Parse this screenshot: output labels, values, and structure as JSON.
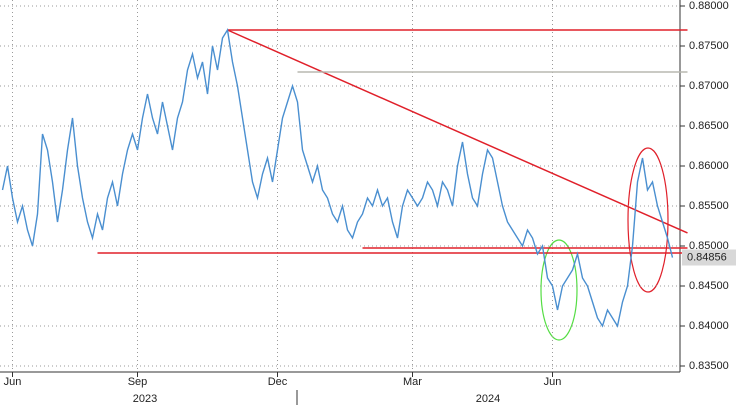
{
  "chart_data": {
    "type": "line",
    "categories": [
      null,
      null,
      "Jun",
      null,
      null,
      null,
      null,
      null,
      null,
      null,
      null,
      null,
      null,
      null,
      null,
      null,
      null,
      null,
      null,
      null,
      null,
      null,
      null,
      null,
      null,
      null,
      null,
      "Sep",
      null,
      null,
      null,
      null,
      null,
      null,
      null,
      null,
      null,
      null,
      null,
      null,
      null,
      null,
      null,
      null,
      null,
      null,
      null,
      null,
      null,
      null,
      null,
      null,
      null,
      null,
      null,
      "Dec",
      null,
      null,
      null,
      null,
      null,
      null,
      null,
      null,
      null,
      null,
      null,
      null,
      null,
      null,
      null,
      null,
      null,
      null,
      null,
      null,
      null,
      null,
      null,
      null,
      null,
      null,
      "Mar",
      null,
      null,
      null,
      null,
      null,
      null,
      null,
      null,
      null,
      null,
      null,
      null,
      null,
      null,
      null,
      null,
      null,
      null,
      null,
      null,
      null,
      null,
      null,
      null,
      null,
      null,
      null,
      "Jun",
      null,
      null,
      null,
      null,
      null,
      null,
      null,
      null,
      null,
      null,
      null,
      null,
      null,
      null,
      null,
      null,
      null,
      null,
      null,
      null,
      null,
      null,
      null,
      null,
      null
    ],
    "years": [
      "2023",
      "2024"
    ],
    "series": [
      {
        "color": "#4a8fd0",
        "values": [
          0.857,
          0.86,
          0.856,
          0.853,
          0.855,
          0.852,
          0.85,
          0.854,
          0.864,
          0.862,
          0.858,
          0.853,
          0.857,
          0.862,
          0.866,
          0.86,
          0.856,
          0.853,
          0.851,
          0.854,
          0.852,
          0.856,
          0.858,
          0.855,
          0.859,
          0.862,
          0.864,
          0.862,
          0.866,
          0.869,
          0.866,
          0.864,
          0.868,
          0.865,
          0.862,
          0.866,
          0.868,
          0.872,
          0.874,
          0.871,
          0.873,
          0.869,
          0.875,
          0.872,
          0.876,
          0.877,
          0.873,
          0.87,
          0.866,
          0.862,
          0.858,
          0.856,
          0.859,
          0.861,
          0.858,
          0.862,
          0.866,
          0.868,
          0.87,
          0.868,
          0.862,
          0.86,
          0.858,
          0.86,
          0.857,
          0.856,
          0.854,
          0.853,
          0.855,
          0.852,
          0.851,
          0.853,
          0.854,
          0.856,
          0.855,
          0.857,
          0.855,
          0.856,
          0.853,
          0.851,
          0.855,
          0.857,
          0.856,
          0.855,
          0.856,
          0.858,
          0.857,
          0.855,
          0.858,
          0.857,
          0.855,
          0.86,
          0.863,
          0.859,
          0.856,
          0.855,
          0.859,
          0.862,
          0.861,
          0.858,
          0.855,
          0.853,
          0.852,
          0.851,
          0.85,
          0.852,
          0.851,
          0.849,
          0.85,
          0.846,
          0.845,
          0.842,
          0.845,
          0.846,
          0.847,
          0.849,
          0.846,
          0.845,
          0.843,
          0.841,
          0.84,
          0.842,
          0.841,
          0.84,
          0.843,
          0.845,
          0.85,
          0.858,
          0.861,
          0.857,
          0.858,
          0.855,
          0.853,
          0.851,
          0.84856,
          null
        ]
      }
    ],
    "ylim": [
      0.83425,
      0.88075
    ],
    "yticks": [
      {
        "value": 0.835,
        "label": "0.83500"
      },
      {
        "value": 0.84,
        "label": "0.84000"
      },
      {
        "value": 0.845,
        "label": "0.84500"
      },
      {
        "value": 0.85,
        "label": "0.85000"
      },
      {
        "value": 0.855,
        "label": "0.85500"
      },
      {
        "value": 0.86,
        "label": "0.86000"
      },
      {
        "value": 0.865,
        "label": "0.86500"
      },
      {
        "value": 0.87,
        "label": "0.87000"
      },
      {
        "value": 0.875,
        "label": "0.87500"
      },
      {
        "value": 0.88,
        "label": "0.88000"
      }
    ],
    "last_price": {
      "value": 0.84856,
      "label": "0.84856"
    },
    "reference_lines": [
      {
        "start": 45,
        "end": 135,
        "y1": 0.877,
        "y2": 0.877,
        "color": "#e0202a"
      },
      {
        "start": 45,
        "end": 135,
        "y1": 0.877,
        "y2": 0.85163,
        "color": "#e0202a"
      },
      {
        "start": 19,
        "end": 135,
        "y1": 0.84913,
        "y2": 0.84913,
        "color": "#e0202a"
      },
      {
        "start": 72,
        "end": 135,
        "y1": 0.84975,
        "y2": 0.84975,
        "color": "#e0202a"
      },
      {
        "start": 59,
        "end": 135,
        "y1": 0.87175,
        "y2": 0.87175,
        "color": "#b8b8b0"
      }
    ],
    "grid": true
  }
}
